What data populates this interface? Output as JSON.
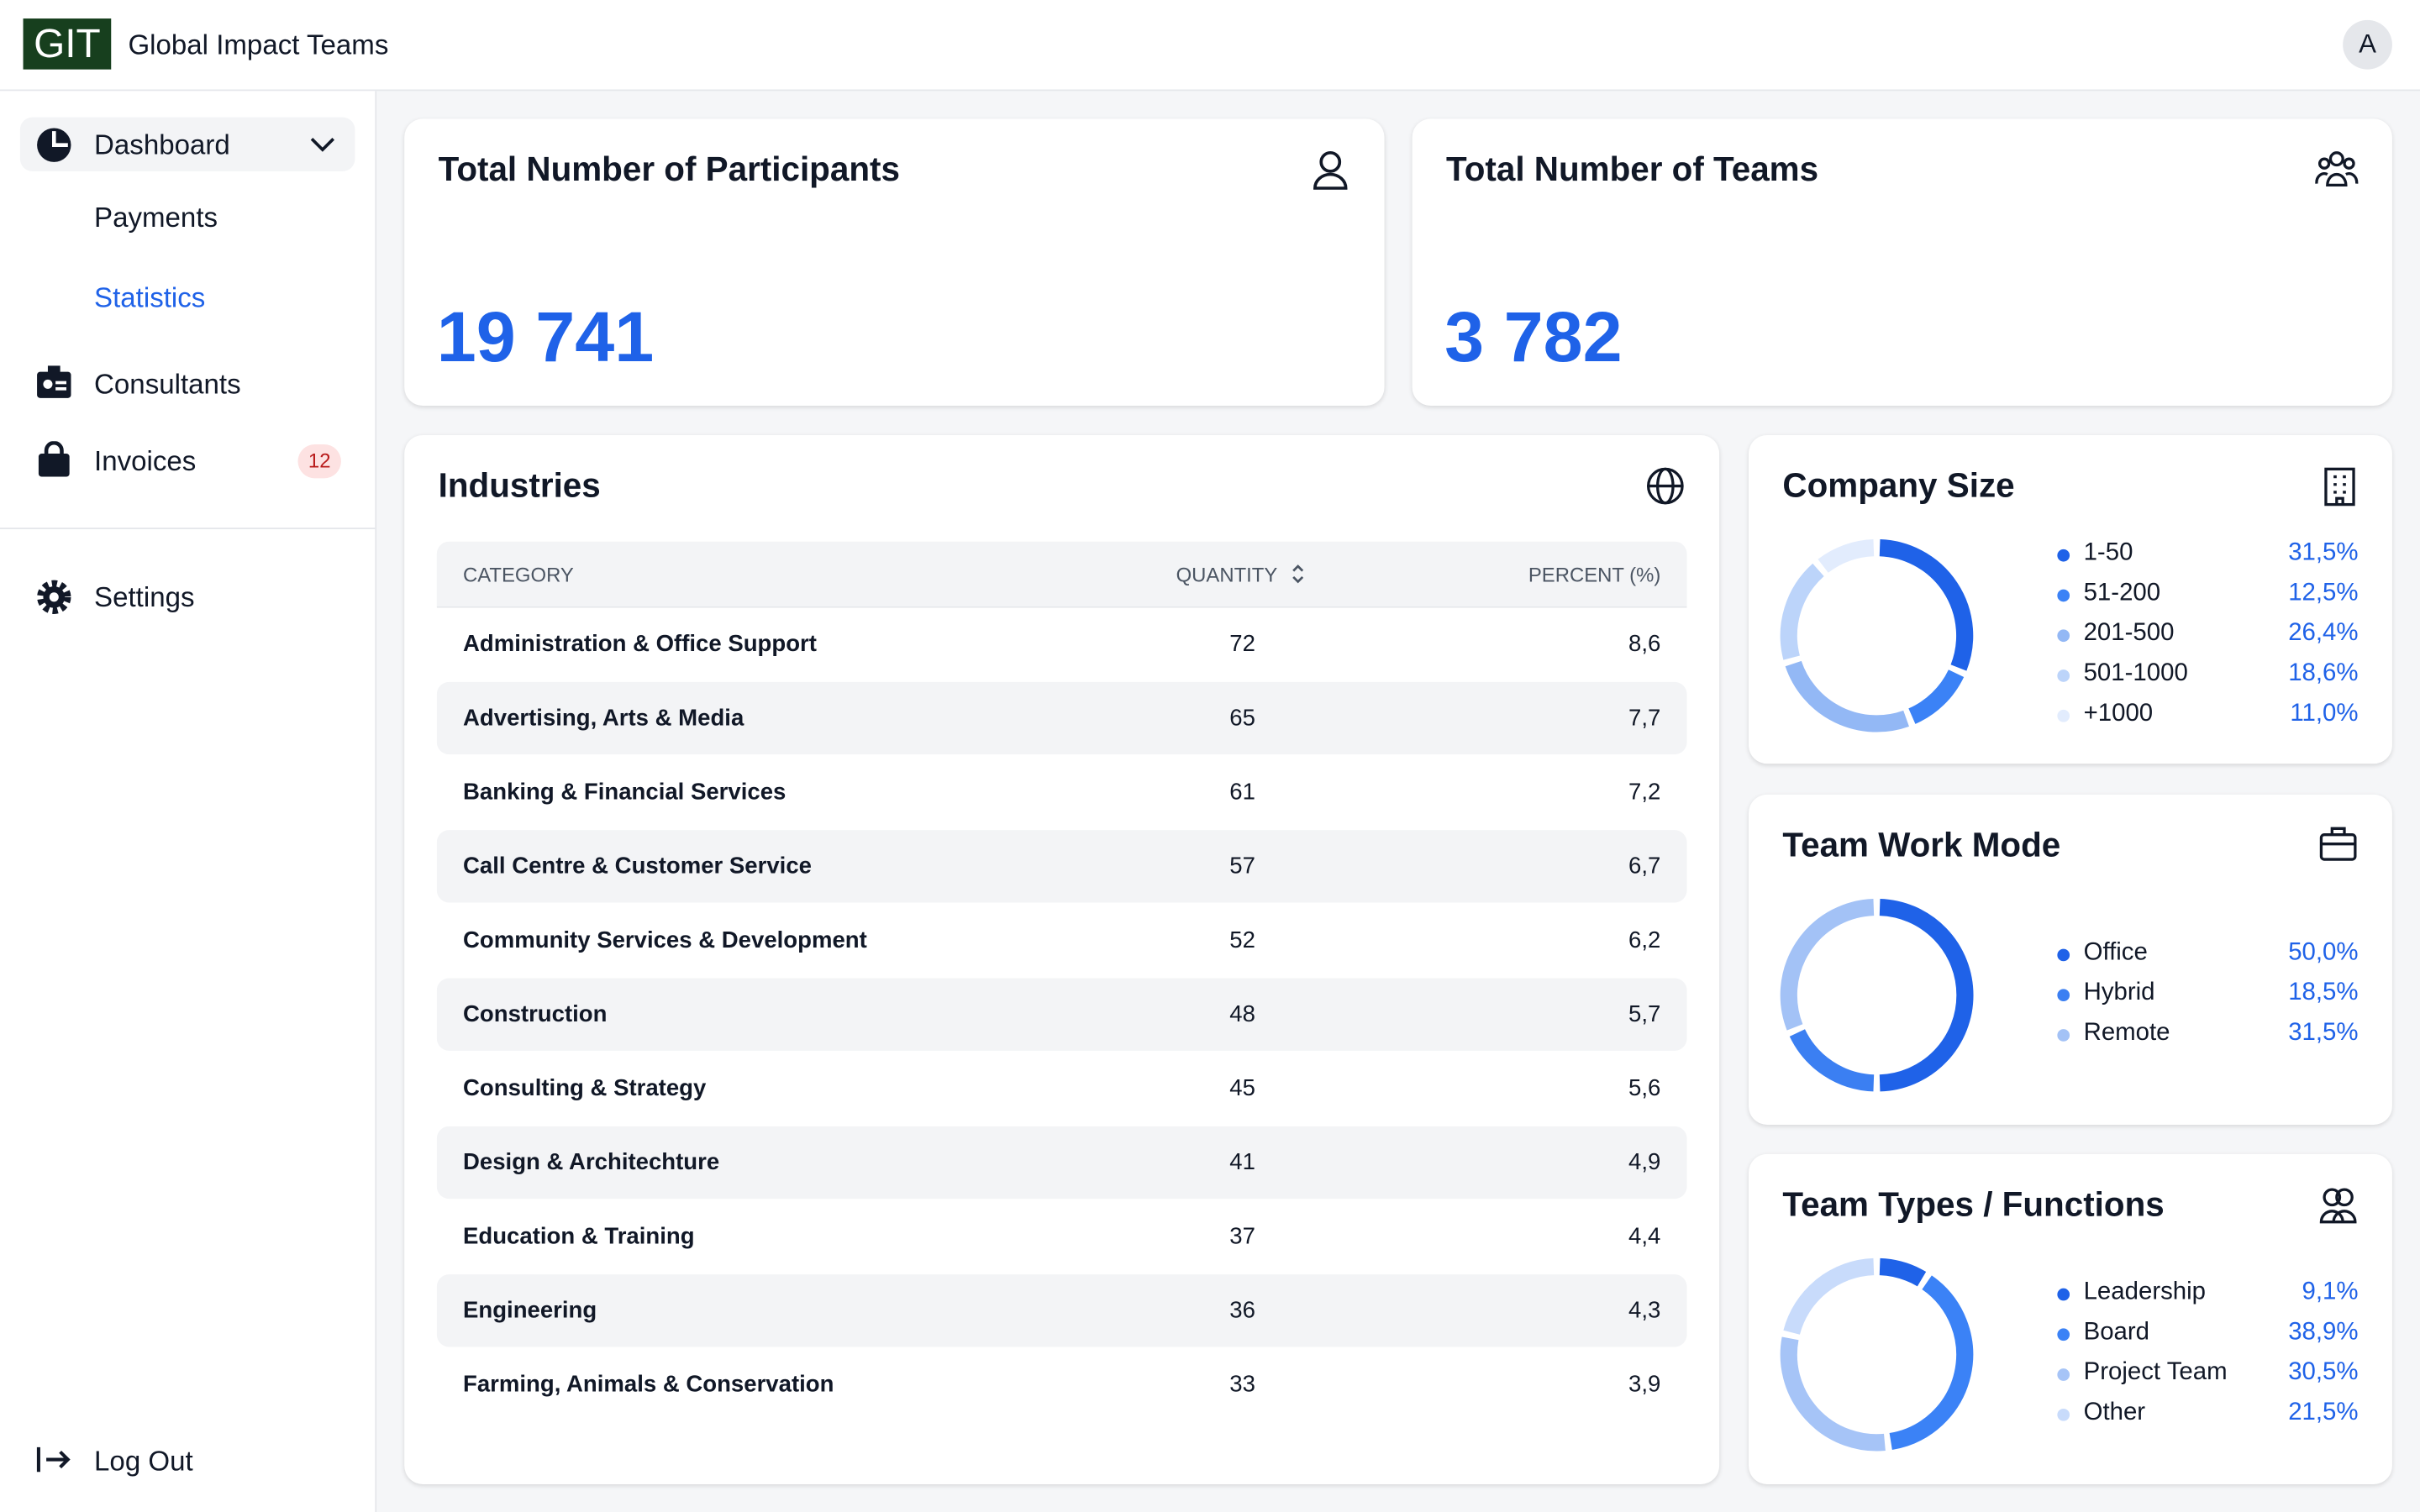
{
  "header": {
    "logo": "GIT",
    "title": "Global Impact Teams",
    "avatar": "A"
  },
  "sidebar": {
    "items": [
      "Dashboard",
      "Payments",
      "Statistics",
      "Consultants",
      "Invoices",
      "Settings"
    ],
    "invoices_badge": 12,
    "logout": "Log Out"
  },
  "stats": [
    {
      "title": "Total Number of Participants",
      "value": "19 741"
    },
    {
      "title": "Total Number of Teams",
      "value": "3 782"
    }
  ],
  "table": {
    "title": "Industries",
    "columns": [
      "CATEGORY",
      "QUANTITY",
      "PERCENT (%)"
    ],
    "rows": [
      [
        "Administration & Office Support",
        72,
        "8,6"
      ],
      [
        "Advertising, Arts & Media",
        65,
        "7,7"
      ],
      [
        "Banking & Financial Services",
        61,
        "7,2"
      ],
      [
        "Call Centre & Customer Service",
        57,
        "6,7"
      ],
      [
        "Community Services & Development",
        52,
        "6,2"
      ],
      [
        "Construction",
        48,
        "5,7"
      ],
      [
        "Consulting & Strategy",
        45,
        "5,6"
      ],
      [
        "Design & Architechture",
        41,
        "4,9"
      ],
      [
        "Education & Training",
        37,
        "4,4"
      ],
      [
        "Engineering",
        36,
        "4,3"
      ],
      [
        "Farming, Animals & Conservation",
        33,
        "3,9"
      ]
    ]
  },
  "chart_data": [
    {
      "type": "pie",
      "title": "Company Size",
      "categories": [
        "1-50",
        "51-200",
        "201-500",
        "501-1000",
        "+1000"
      ],
      "values": [
        31.5,
        12.5,
        26.4,
        18.6,
        11.0
      ],
      "value_labels": [
        "31,5%",
        "12,5%",
        "26,4%",
        "18,6%",
        "11,0%"
      ],
      "colors": [
        "#1f62e8",
        "#3b82f6",
        "#93b8f5",
        "#bcd4fa",
        "#e2ecfd"
      ]
    },
    {
      "type": "pie",
      "title": "Team Work Mode",
      "categories": [
        "Office",
        "Hybrid",
        "Remote"
      ],
      "values": [
        50.0,
        18.5,
        31.5
      ],
      "value_labels": [
        "50,0%",
        "18,5%",
        "31,5%"
      ],
      "colors": [
        "#1f62e8",
        "#3b7ff2",
        "#a3c2f6"
      ]
    },
    {
      "type": "pie",
      "title": "Team Types / Functions",
      "categories": [
        "Leadership",
        "Board",
        "Project Team",
        "Other"
      ],
      "values": [
        9.1,
        38.9,
        30.5,
        21.5
      ],
      "value_labels": [
        "9,1%",
        "38,9%",
        "30,5%",
        "21,5%"
      ],
      "colors": [
        "#1f62e8",
        "#3b82f6",
        "#a6c4f7",
        "#c8dbfb"
      ]
    }
  ]
}
